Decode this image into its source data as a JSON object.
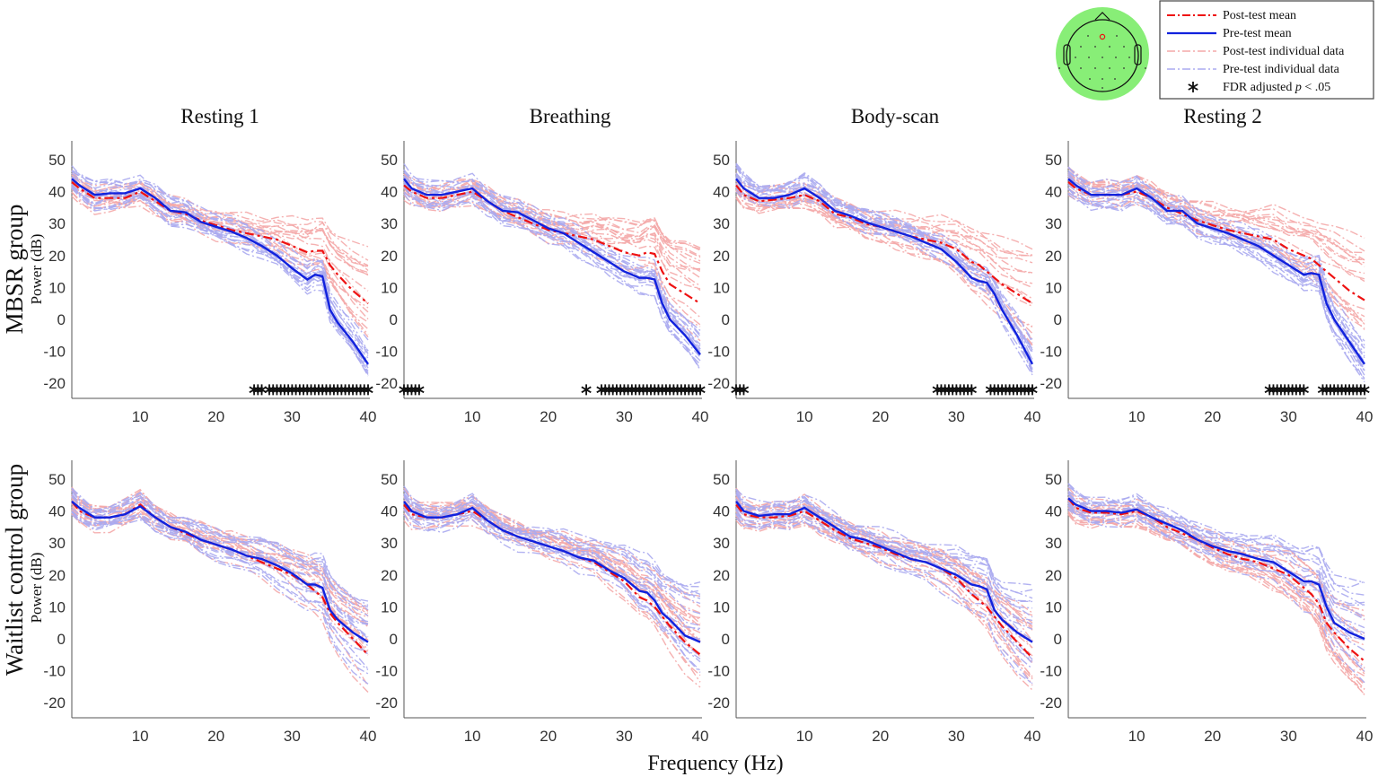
{
  "chart_data": {
    "type": "line",
    "xlabel": "Frequency (Hz)",
    "ylabel": "Power (dB)",
    "xlim": [
      1,
      40
    ],
    "ylim": [
      -25,
      56
    ],
    "xticks": [
      10,
      20,
      30,
      40
    ],
    "yticks": [
      50,
      40,
      30,
      20,
      10,
      0,
      -10,
      -20
    ],
    "conditions": [
      "Resting 1",
      "Breathing",
      "Body-scan",
      "Resting 2"
    ],
    "groups": [
      "MBSR group",
      "Waitlist control group"
    ],
    "legend": {
      "placement": "top-right",
      "entries": [
        "Post-test mean",
        "Pre-test mean",
        "Post-test individual data",
        "Pre-test individual data"
      ],
      "star_prefix": "FDR adjusted ",
      "star_p": "p",
      "star_suffix": " < .05"
    },
    "colors": {
      "post_mean": "#ee1111",
      "pre_mean": "#1122dd",
      "post_ind": "#f4a8a8",
      "pre_ind": "#aaaaf0",
      "topo": "#88ee77"
    },
    "x": [
      1,
      2,
      4,
      6,
      8,
      10,
      12,
      14,
      16,
      18,
      20,
      22,
      24,
      26,
      28,
      30,
      32,
      33,
      34,
      35,
      36,
      38,
      40
    ],
    "panels": [
      {
        "group": 0,
        "condition": 0,
        "pre_mean": [
          44,
          42,
          39,
          39.5,
          39.5,
          41,
          38,
          34,
          33.5,
          30.5,
          29,
          27.5,
          25.5,
          23,
          20,
          16,
          12.5,
          14,
          13.5,
          3,
          -1,
          -7,
          -14
        ],
        "post_mean": [
          43,
          41,
          38,
          38,
          38,
          40,
          37,
          34,
          33,
          31,
          29.5,
          28,
          27,
          26,
          25,
          23,
          21,
          21.5,
          21.5,
          17,
          14,
          9,
          5
        ],
        "significant_ranges": [
          [
            25,
            26
          ],
          [
            27,
            40
          ]
        ],
        "post_spread": 16,
        "pre_spread": 5
      },
      {
        "group": 0,
        "condition": 1,
        "pre_mean": [
          44,
          41,
          39,
          39,
          40,
          41,
          37,
          34,
          33.5,
          31,
          28.5,
          27,
          24,
          21,
          18,
          15,
          13,
          13,
          12.5,
          5,
          0,
          -5,
          -11
        ],
        "post_mean": [
          42,
          40,
          38,
          38,
          39,
          40,
          37,
          34,
          32,
          30,
          28,
          27,
          26,
          25,
          23,
          21,
          20,
          21,
          20.5,
          15,
          11,
          8,
          5
        ],
        "significant_ranges": [
          [
            1,
            3
          ],
          [
            25,
            25
          ],
          [
            27,
            40
          ]
        ],
        "post_spread": 16,
        "pre_spread": 5
      },
      {
        "group": 0,
        "condition": 2,
        "pre_mean": [
          44,
          41,
          38,
          38,
          39,
          41,
          38,
          34,
          32.5,
          30.5,
          29,
          27.5,
          26,
          24,
          22,
          18,
          13,
          12,
          11.5,
          8,
          3,
          -5,
          -14
        ],
        "post_mean": [
          42,
          39,
          37,
          37.5,
          38,
          39,
          37,
          33,
          32,
          30,
          29,
          27.5,
          26,
          25,
          24,
          22,
          18,
          17,
          15,
          13,
          11,
          8,
          5
        ],
        "significant_ranges": [
          [
            1,
            2
          ],
          [
            27.5,
            32
          ],
          [
            34.5,
            40
          ]
        ],
        "post_spread": 16,
        "pre_spread": 5
      },
      {
        "group": 0,
        "condition": 3,
        "pre_mean": [
          44,
          42,
          39,
          39,
          39,
          41,
          38,
          34,
          34,
          30,
          28.5,
          27,
          25,
          23,
          20,
          17,
          14,
          14.5,
          14,
          5,
          0,
          -7,
          -14
        ],
        "post_mean": [
          43,
          41,
          39,
          39,
          39,
          40,
          38,
          35,
          33,
          31,
          29.5,
          28,
          27,
          26,
          25,
          22,
          20,
          19,
          17,
          15,
          13,
          9,
          6
        ],
        "significant_ranges": [
          [
            27.5,
            32
          ],
          [
            34.5,
            40
          ]
        ],
        "post_spread": 16,
        "pre_spread": 5
      },
      {
        "group": 1,
        "condition": 0,
        "pre_mean": [
          43,
          41,
          38,
          38,
          39,
          41.5,
          38,
          35,
          33.5,
          31,
          29.5,
          28,
          26,
          25,
          23,
          20.5,
          17,
          17,
          16,
          9,
          6,
          2,
          -1
        ],
        "post_mean": [
          43,
          40,
          38,
          38,
          39,
          42,
          38,
          35,
          33,
          31,
          29.5,
          28,
          26,
          24,
          22,
          20,
          17,
          15,
          13,
          8,
          5,
          0,
          -5
        ],
        "significant_ranges": [],
        "post_spread": 14,
        "pre_spread": 16
      },
      {
        "group": 1,
        "condition": 1,
        "pre_mean": [
          43,
          40,
          38,
          38,
          39,
          41,
          37,
          34,
          32,
          30.5,
          29,
          27.5,
          25.5,
          24.5,
          21.5,
          19,
          15,
          14.5,
          12,
          8,
          6,
          1,
          -1
        ],
        "post_mean": [
          42,
          39,
          38,
          38,
          39,
          40,
          37,
          34,
          32,
          30.5,
          29,
          27.5,
          25.5,
          24,
          21,
          18,
          13,
          12,
          10,
          7,
          4,
          -1,
          -5
        ],
        "significant_ranges": [],
        "post_spread": 14,
        "pre_spread": 16
      },
      {
        "group": 1,
        "condition": 2,
        "pre_mean": [
          43,
          40,
          38.5,
          39,
          39,
          41,
          38,
          35,
          32,
          31,
          29,
          27,
          25,
          24,
          22,
          20,
          17,
          16.5,
          15.5,
          9,
          6,
          2,
          -1
        ],
        "post_mean": [
          42,
          39,
          38,
          38,
          38.5,
          40,
          37,
          34,
          31.5,
          30,
          28.5,
          26.5,
          25,
          24,
          22,
          19,
          14,
          12,
          10,
          7,
          4,
          -1,
          -6
        ],
        "significant_ranges": [],
        "post_spread": 14,
        "pre_spread": 16
      },
      {
        "group": 1,
        "condition": 3,
        "pre_mean": [
          44,
          42,
          40,
          40,
          39.5,
          40.5,
          38,
          36,
          34,
          31,
          29,
          27.5,
          26.5,
          25,
          24,
          21,
          18,
          18,
          17,
          10,
          5,
          2,
          0
        ],
        "post_mean": [
          44,
          41,
          39.5,
          39.5,
          39,
          40,
          38,
          35,
          33,
          31,
          28.5,
          26.5,
          25,
          24,
          22,
          20,
          16,
          14,
          11,
          5,
          2,
          -3,
          -7
        ],
        "significant_ranges": [],
        "post_spread": 14,
        "pre_spread": 16
      }
    ],
    "individuals_per_group": 18
  }
}
